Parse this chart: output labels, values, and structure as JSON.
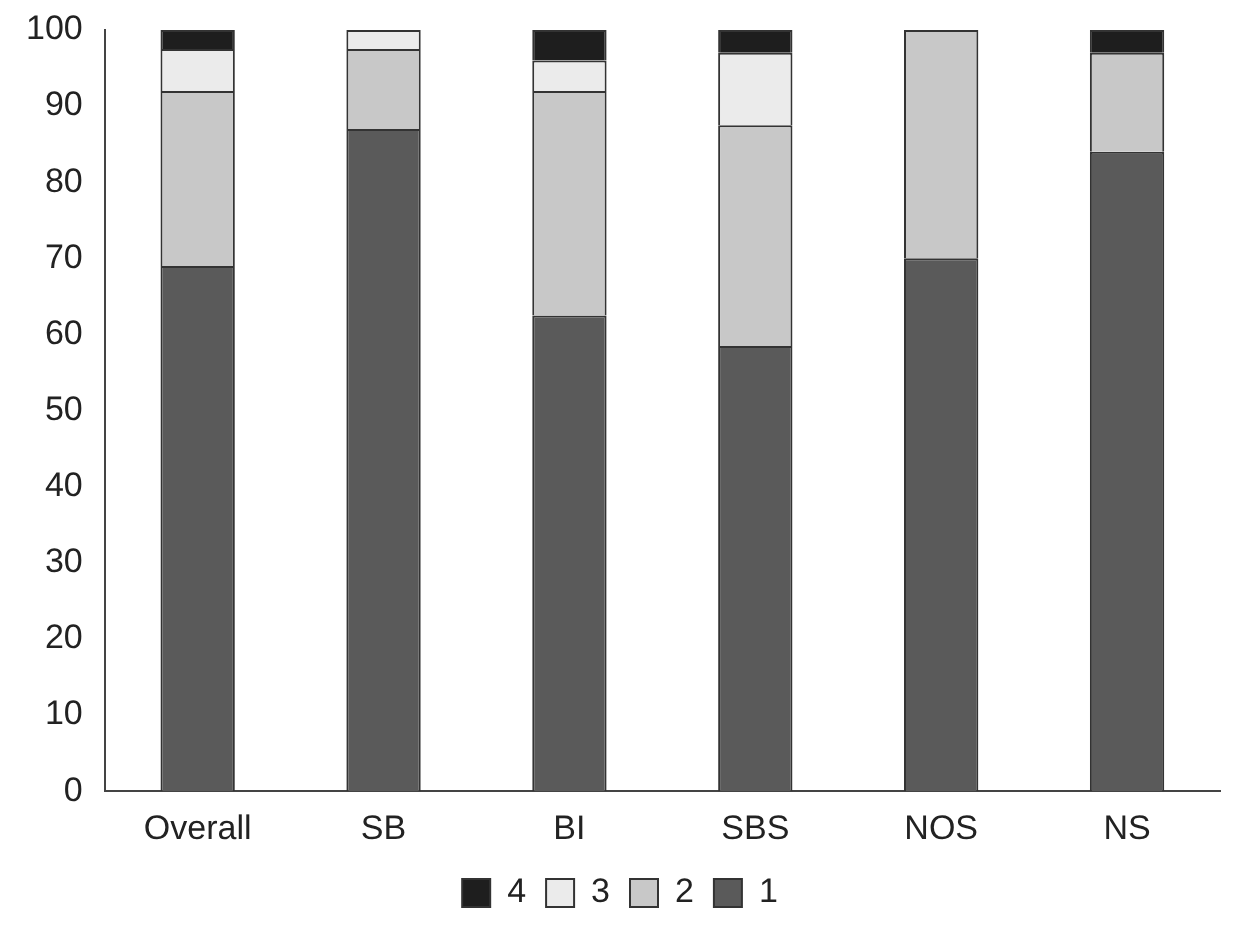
{
  "chart_data": {
    "type": "bar",
    "stacked": true,
    "categories": [
      "Overall",
      "SB",
      "BI",
      "SBS",
      "NOS",
      "NS"
    ],
    "series": [
      {
        "name": "1",
        "color": "#5a5a5a",
        "values": [
          69,
          87,
          62.5,
          58.5,
          70,
          84
        ]
      },
      {
        "name": "2",
        "color": "#c8c8c8",
        "values": [
          23,
          10.5,
          29.5,
          29,
          30,
          13
        ]
      },
      {
        "name": "3",
        "color": "#ebebeb",
        "values": [
          5.5,
          2.5,
          4,
          9.5,
          0,
          0
        ]
      },
      {
        "name": "4",
        "color": "#1e1e1e",
        "values": [
          2.5,
          0,
          4,
          3,
          0,
          3
        ]
      }
    ],
    "ylim": [
      0,
      100
    ],
    "yticks": [
      0,
      10,
      20,
      30,
      40,
      50,
      60,
      70,
      80,
      90,
      100
    ],
    "grid": false,
    "legend": "bottom"
  }
}
